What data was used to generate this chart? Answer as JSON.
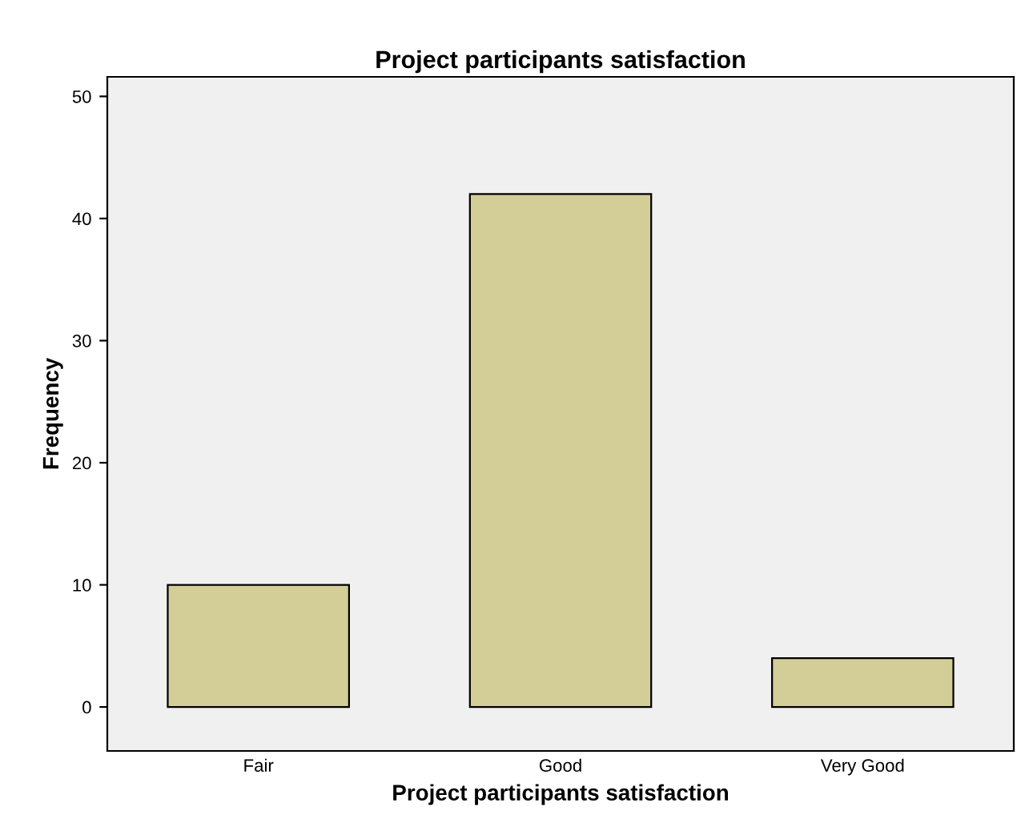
{
  "chart_data": {
    "type": "bar",
    "title": "Project participants satisfaction",
    "xlabel": "Project participants satisfaction",
    "ylabel": "Frequency",
    "categories": [
      "Fair",
      "Good",
      "Very Good"
    ],
    "values": [
      10,
      42,
      4
    ],
    "color": "#d3ce97",
    "ylim": [
      -3.6,
      51.6
    ],
    "yticks": [
      0,
      10,
      20,
      30,
      40,
      50
    ],
    "grid": false,
    "legend": false
  }
}
